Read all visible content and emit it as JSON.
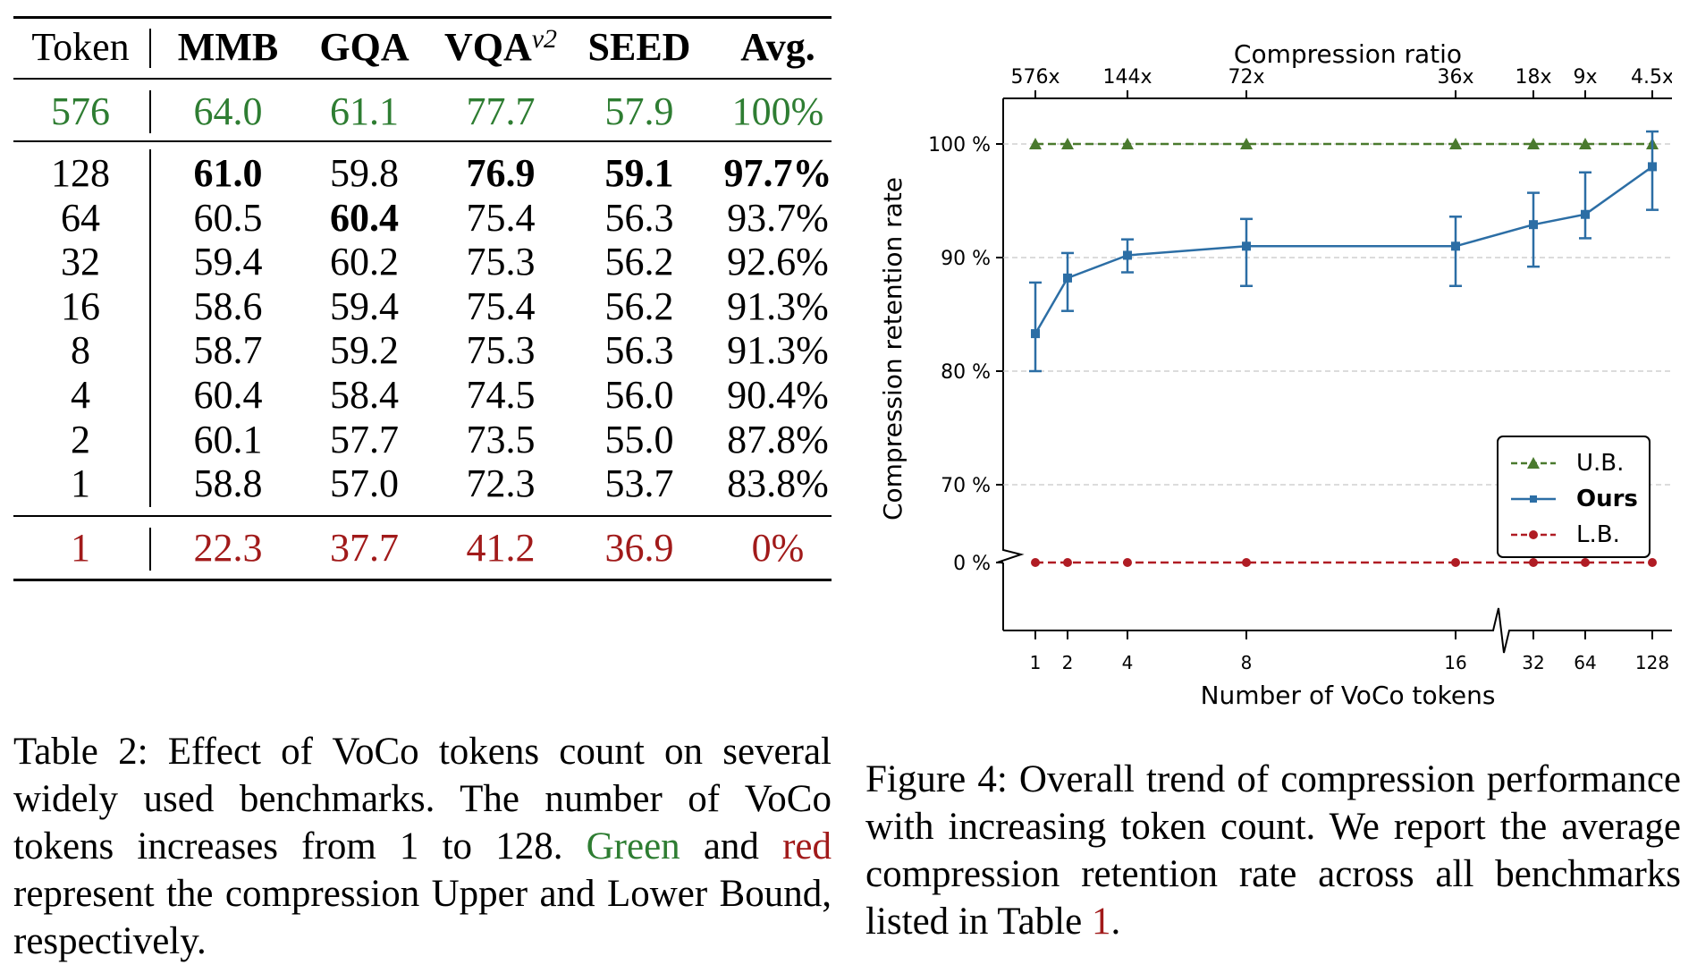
{
  "table": {
    "headers": [
      "Token",
      "MMB",
      "GQA",
      "VQA",
      "SEED",
      "Avg."
    ],
    "vqa_superscript": "v2",
    "upper_row": [
      "576",
      "64.0",
      "61.1",
      "77.7",
      "57.9",
      "100%"
    ],
    "rows": [
      [
        "128",
        "61.0",
        "59.8",
        "76.9",
        "59.1",
        "97.7%"
      ],
      [
        "64",
        "60.5",
        "60.4",
        "75.4",
        "56.3",
        "93.7%"
      ],
      [
        "32",
        "59.4",
        "60.2",
        "75.3",
        "56.2",
        "92.6%"
      ],
      [
        "16",
        "58.6",
        "59.4",
        "75.4",
        "56.2",
        "91.3%"
      ],
      [
        "8",
        "58.7",
        "59.2",
        "75.3",
        "56.3",
        "91.3%"
      ],
      [
        "4",
        "60.4",
        "58.4",
        "74.5",
        "56.0",
        "90.4%"
      ],
      [
        "2",
        "60.1",
        "57.7",
        "73.5",
        "55.0",
        "87.8%"
      ],
      [
        "1",
        "58.8",
        "57.0",
        "72.3",
        "53.7",
        "83.8%"
      ]
    ],
    "bold_cells": [
      [
        0,
        1
      ],
      [
        0,
        3
      ],
      [
        0,
        4
      ],
      [
        0,
        5
      ],
      [
        1,
        2
      ]
    ],
    "lower_row": [
      "1",
      "22.3",
      "37.7",
      "41.2",
      "36.9",
      "0%"
    ]
  },
  "caption_left": {
    "prefix": "Table 2: Effect of VoCo tokens count on several widely used benchmarks. The number of VoCo tokens increases from 1 to 128. ",
    "green_word": "Green",
    "middle": " and ",
    "red_word": "red",
    "suffix": " represent the compression Upper and Lower Bound, respectively."
  },
  "caption_right": {
    "text": "Figure 4: Overall trend of compression performance with increasing token count. We report the average compression retention rate across all benchmarks listed in Table ",
    "ref": "1",
    "end": "."
  },
  "chart_data": {
    "type": "line",
    "title": "Compression ratio",
    "xlabel": "Number of VoCo tokens",
    "ylabel": "Compression retention rate",
    "x": [
      1,
      2,
      4,
      8,
      16,
      32,
      64,
      128
    ],
    "x_tick_labels": [
      "1",
      "2",
      "4",
      "8",
      "16",
      "32",
      "64",
      "128"
    ],
    "top_tick_labels": [
      "576x",
      "144x",
      "72x",
      "36x",
      "18x",
      "9x",
      "4.5x"
    ],
    "top_tick_at_x": [
      1,
      4,
      8,
      16,
      32,
      64,
      128
    ],
    "y_tick_labels": [
      "0 %",
      "70 %",
      "80 %",
      "90 %",
      "100 %"
    ],
    "y_ticks": [
      0,
      70,
      80,
      90,
      100
    ],
    "grid": "horizontal dashed",
    "legend_position": "lower-right",
    "series": [
      {
        "name": "U.B.",
        "color": "#4a7a2e",
        "marker": "triangle",
        "style": "dashed",
        "values": [
          100,
          100,
          100,
          100,
          100,
          100,
          100,
          100
        ]
      },
      {
        "name": "Ours",
        "color": "#2c6ea5",
        "marker": "star",
        "style": "solid",
        "bold_label": true,
        "values": [
          83.3,
          88.2,
          90.2,
          91.0,
          91.0,
          92.9,
          93.8,
          98.0
        ],
        "err_low": [
          80.0,
          85.3,
          88.7,
          87.5,
          87.5,
          89.2,
          91.7,
          94.2
        ],
        "err_high": [
          87.8,
          90.4,
          91.6,
          93.4,
          93.6,
          95.7,
          97.5,
          101.1
        ]
      },
      {
        "name": "L.B.",
        "color": "#b01c24",
        "marker": "circle",
        "style": "dashed",
        "values": [
          0,
          0,
          0,
          0,
          0,
          0,
          0,
          0
        ]
      }
    ]
  }
}
